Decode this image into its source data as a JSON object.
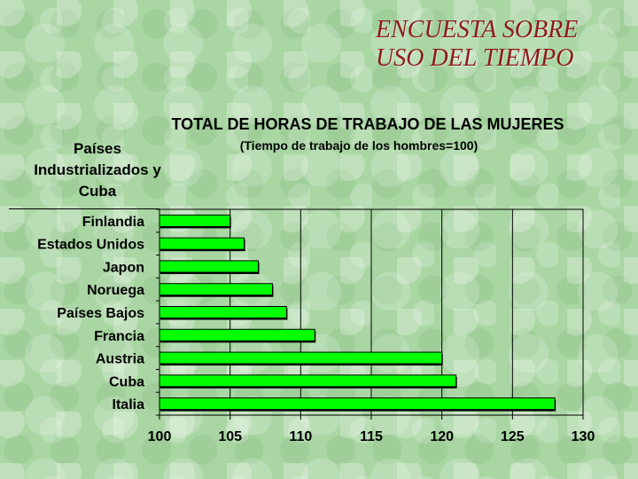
{
  "slide": {
    "title_line1": "ENCUESTA SOBRE",
    "title_line2": "USO DEL TIEMPO"
  },
  "chart_data": {
    "type": "bar",
    "orientation": "horizontal",
    "title": "TOTAL DE HORAS DE TRABAJO DE LAS MUJERES",
    "subtitle": "(Tiempo de trabajo de los hombres=100)",
    "ylabel_lines": [
      "Países",
      "Industrializados y",
      "Cuba"
    ],
    "xlabel": "",
    "categories": [
      "Finlandia",
      "Estados Unidos",
      "Japon",
      "Noruega",
      "Países Bajos",
      "Francia",
      "Austria",
      "Cuba",
      "Italia"
    ],
    "values": [
      105,
      106,
      107,
      108,
      109,
      111,
      120,
      121,
      128
    ],
    "xlim": [
      100,
      130
    ],
    "xticks": [
      "100",
      "105",
      "110",
      "115",
      "120",
      "125",
      "130"
    ],
    "grid": "vertical",
    "bar_color": "#00ff00",
    "bar_edge_color": "#000000"
  }
}
